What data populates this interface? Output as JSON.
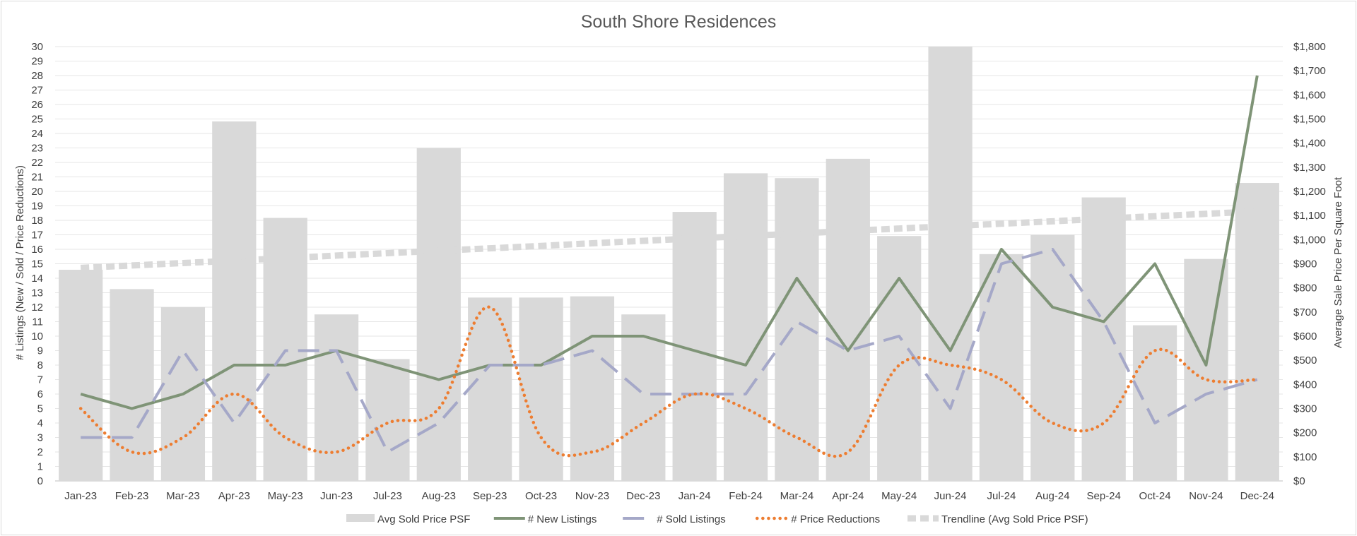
{
  "chart_data": {
    "type": "bar",
    "title": "South Shore Residences",
    "ylabel": "# Listings (New / Sold / Price Reductions)",
    "y2label": "Average Sale Price Per Square Foot",
    "ylim": [
      0,
      30
    ],
    "y2lim": [
      0,
      1800
    ],
    "yticks": [
      "0",
      "1",
      "2",
      "3",
      "4",
      "5",
      "6",
      "7",
      "8",
      "9",
      "10",
      "11",
      "12",
      "13",
      "14",
      "15",
      "16",
      "17",
      "18",
      "19",
      "20",
      "21",
      "22",
      "23",
      "24",
      "25",
      "26",
      "27",
      "28",
      "29",
      "30"
    ],
    "y2ticks": [
      "$0",
      "$100",
      "$200",
      "$300",
      "$400",
      "$500",
      "$600",
      "$700",
      "$800",
      "$900",
      "$1,000",
      "$1,100",
      "$1,200",
      "$1,300",
      "$1,400",
      "$1,500",
      "$1,600",
      "$1,700",
      "$1,800"
    ],
    "grid": true,
    "legend_position": "bottom",
    "categories": [
      "Jan-23",
      "Feb-23",
      "Mar-23",
      "Apr-23",
      "May-23",
      "Jun-23",
      "Jul-23",
      "Aug-23",
      "Sep-23",
      "Oct-23",
      "Nov-23",
      "Dec-23",
      "Jan-24",
      "Feb-24",
      "Mar-24",
      "Apr-24",
      "May-24",
      "Jun-24",
      "Jul-24",
      "Aug-24",
      "Sep-24",
      "Oct-24",
      "Nov-24",
      "Dec-24"
    ],
    "series": [
      {
        "name": "Avg Sold Price PSF",
        "type": "bar",
        "axis": "right",
        "color": "#d9d9d9",
        "values": [
          875,
          795,
          720,
          1490,
          1090,
          690,
          505,
          1380,
          760,
          760,
          765,
          690,
          1115,
          1275,
          1255,
          1335,
          1015,
          1800,
          940,
          1020,
          1175,
          645,
          920,
          1235
        ]
      },
      {
        "name": "# New Listings",
        "type": "line",
        "axis": "left",
        "color": "#7f9477",
        "dash": "solid",
        "values": [
          6,
          5,
          6,
          8,
          8,
          9,
          8,
          7,
          8,
          8,
          10,
          10,
          9,
          8,
          14,
          9,
          14,
          9,
          16,
          12,
          11,
          15,
          8,
          28
        ]
      },
      {
        "name": "# Sold Listings",
        "type": "line",
        "axis": "left",
        "color": "#a5a8c8",
        "dash": "long-dash",
        "values": [
          3,
          3,
          9,
          4,
          9,
          9,
          2,
          4,
          8,
          8,
          9,
          6,
          6,
          6,
          11,
          9,
          10,
          5,
          15,
          16,
          11,
          4,
          6,
          7
        ]
      },
      {
        "name": "# Price Reductions",
        "type": "line",
        "axis": "left",
        "color": "#ed7d31",
        "dash": "dotted",
        "smooth": true,
        "values": [
          5,
          2,
          3,
          6,
          3,
          2,
          4,
          5,
          12,
          3,
          2,
          4,
          6,
          5,
          3,
          2,
          8,
          8,
          7,
          4,
          4,
          9,
          7,
          7
        ]
      },
      {
        "name": "Trendline (Avg Sold Price PSF)",
        "type": "line",
        "axis": "right",
        "color": "#d9d9d9",
        "dash": "square-dot",
        "values": [
          883,
          893,
          903,
          913,
          923,
          934,
          944,
          954,
          964,
          974,
          985,
          995,
          1005,
          1015,
          1025,
          1036,
          1046,
          1056,
          1066,
          1076,
          1087,
          1097,
          1107,
          1117
        ]
      }
    ]
  }
}
